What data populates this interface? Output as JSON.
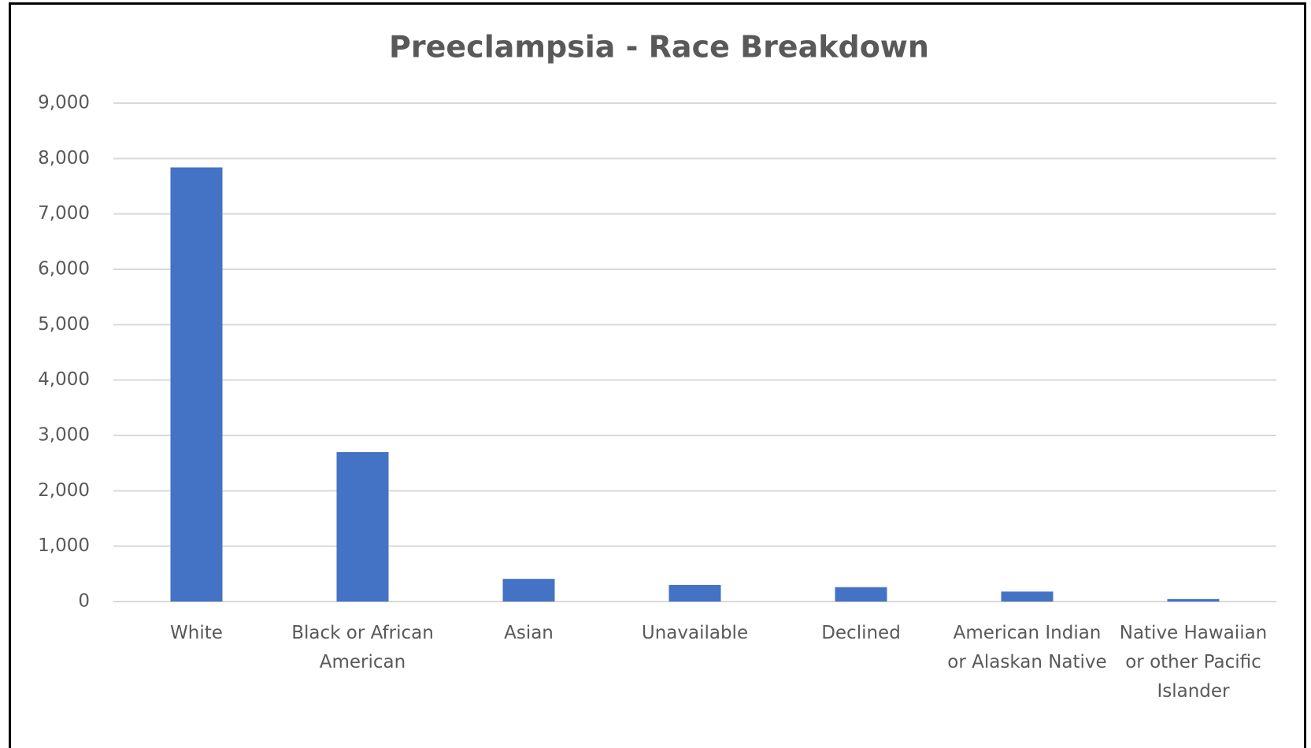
{
  "chart_data": {
    "type": "bar",
    "title": "Preeclampsia - Race Breakdown",
    "categories": [
      "White",
      "Black or African American",
      "Asian",
      "Unavailable",
      "Declined",
      "American Indian or Alaskan Native",
      "Native Hawaiian or other Pacific Islander"
    ],
    "values": [
      7840,
      2700,
      410,
      300,
      260,
      180,
      45
    ],
    "color": "#4472c4",
    "ylim": [
      0,
      9000
    ],
    "yticks": [
      {
        "value": 0,
        "label": "0"
      },
      {
        "value": 1000,
        "label": "1,000"
      },
      {
        "value": 2000,
        "label": "2,000"
      },
      {
        "value": 3000,
        "label": "3,000"
      },
      {
        "value": 4000,
        "label": "4,000"
      },
      {
        "value": 5000,
        "label": "5,000"
      },
      {
        "value": 6000,
        "label": "6,000"
      },
      {
        "value": 7000,
        "label": "7,000"
      },
      {
        "value": 8000,
        "label": "8,000"
      },
      {
        "value": 9000,
        "label": "9,000"
      }
    ],
    "grid": true
  }
}
